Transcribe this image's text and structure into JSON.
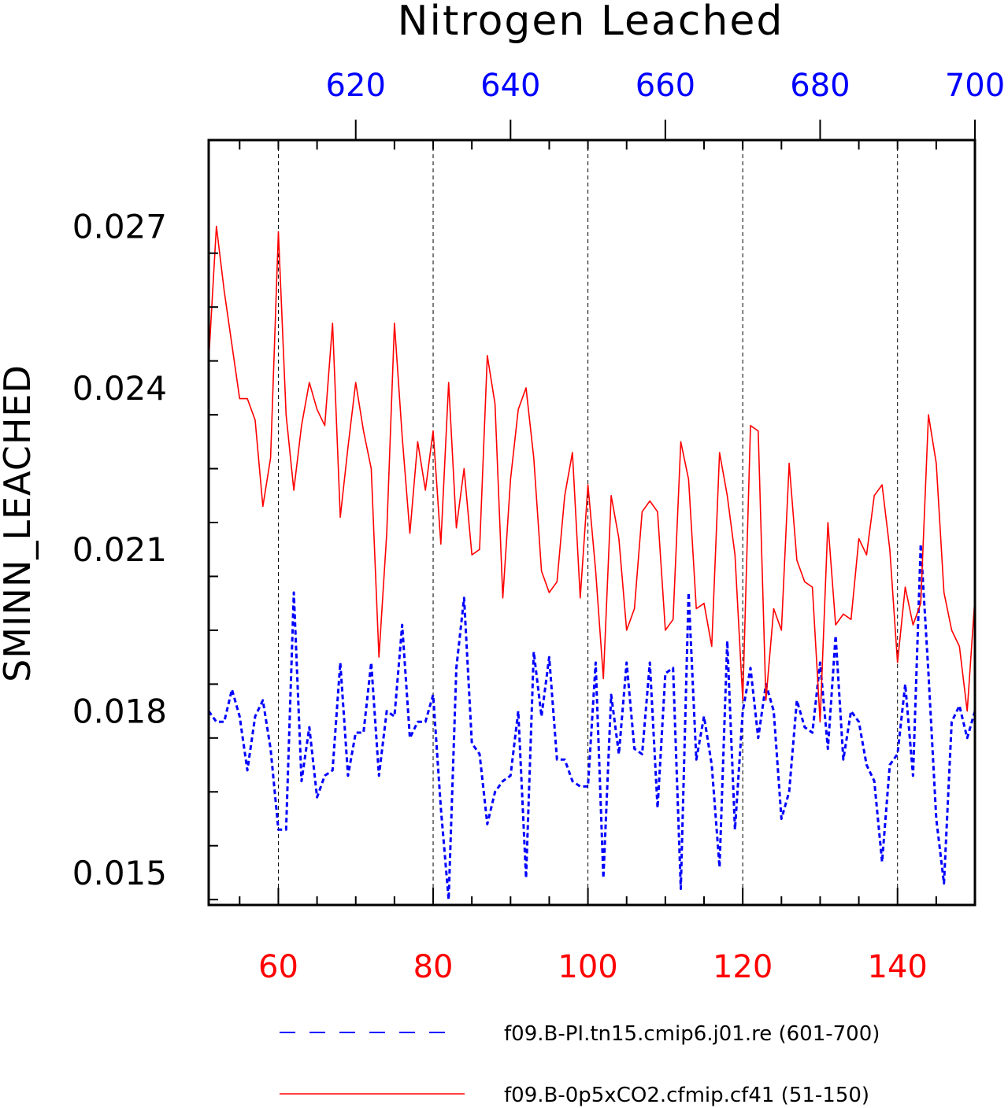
{
  "chart_data": {
    "type": "line",
    "title": "Nitrogen Leached",
    "ylabel": "SMINN_LEACHED",
    "ylim": [
      0.0144,
      0.0286
    ],
    "y_ticks": [
      "0.015",
      "0.018",
      "0.021",
      "0.024",
      "0.027"
    ],
    "grid": "vertical dashed",
    "legend_position": "bottom",
    "x_axis_bottom": {
      "color": "#ff0000",
      "range": [
        51,
        150
      ],
      "ticks": [
        "60",
        "80",
        "100",
        "120",
        "140"
      ]
    },
    "x_axis_top": {
      "color": "#0000ff",
      "range": [
        601,
        700
      ],
      "ticks": [
        "620",
        "640",
        "660",
        "680",
        "700"
      ]
    },
    "series": [
      {
        "name": "f09.B-PI.tn15.cmip6.j01.re (601-700)",
        "axis": "top",
        "color": "#0000ff",
        "style": "dashed",
        "x_start": 601,
        "values": [
          0.018,
          0.0178,
          0.0178,
          0.0184,
          0.0179,
          0.0169,
          0.0179,
          0.0182,
          0.0173,
          0.0158,
          0.0158,
          0.0202,
          0.0167,
          0.0177,
          0.0164,
          0.0168,
          0.0169,
          0.0189,
          0.0168,
          0.0176,
          0.0176,
          0.0189,
          0.0168,
          0.018,
          0.0179,
          0.0196,
          0.0175,
          0.0178,
          0.0178,
          0.0183,
          0.0162,
          0.0145,
          0.0188,
          0.0201,
          0.0174,
          0.0172,
          0.0159,
          0.0165,
          0.0167,
          0.0168,
          0.018,
          0.0149,
          0.0191,
          0.0179,
          0.019,
          0.0171,
          0.0171,
          0.0167,
          0.0166,
          0.0166,
          0.0189,
          0.0149,
          0.0183,
          0.0172,
          0.0189,
          0.0173,
          0.0172,
          0.0189,
          0.0162,
          0.0187,
          0.0188,
          0.0147,
          0.0202,
          0.0171,
          0.0179,
          0.017,
          0.0151,
          0.0193,
          0.0158,
          0.018,
          0.0188,
          0.0175,
          0.0185,
          0.018,
          0.016,
          0.0165,
          0.0182,
          0.0177,
          0.0176,
          0.0189,
          0.0173,
          0.0194,
          0.0171,
          0.018,
          0.0178,
          0.017,
          0.0167,
          0.0152,
          0.017,
          0.0172,
          0.0185,
          0.0168,
          0.0211,
          0.0187,
          0.016,
          0.0148,
          0.0178,
          0.0181,
          0.0175,
          0.018
        ]
      },
      {
        "name": "f09.B-0p5xCO2.cfmip.cf41 (51-150)",
        "axis": "bottom",
        "color": "#ff0000",
        "style": "solid",
        "x_start": 51,
        "values": [
          0.0245,
          0.027,
          0.0258,
          0.0248,
          0.0238,
          0.0238,
          0.0234,
          0.0218,
          0.0227,
          0.0269,
          0.0235,
          0.0221,
          0.0233,
          0.0241,
          0.0236,
          0.0233,
          0.0252,
          0.0216,
          0.0229,
          0.0241,
          0.0232,
          0.0225,
          0.019,
          0.0213,
          0.0252,
          0.0231,
          0.0213,
          0.023,
          0.0221,
          0.0232,
          0.0211,
          0.0241,
          0.0214,
          0.0225,
          0.0209,
          0.021,
          0.0246,
          0.0237,
          0.0201,
          0.0223,
          0.0236,
          0.024,
          0.0227,
          0.0206,
          0.0202,
          0.0204,
          0.022,
          0.0228,
          0.0201,
          0.0222,
          0.0206,
          0.0186,
          0.022,
          0.0212,
          0.0195,
          0.0199,
          0.0217,
          0.0219,
          0.0217,
          0.0195,
          0.0197,
          0.023,
          0.0223,
          0.0199,
          0.02,
          0.0192,
          0.0228,
          0.022,
          0.0209,
          0.0182,
          0.0233,
          0.0232,
          0.0182,
          0.0199,
          0.0195,
          0.0226,
          0.0208,
          0.0204,
          0.0203,
          0.0178,
          0.0215,
          0.0196,
          0.0198,
          0.0197,
          0.0212,
          0.0209,
          0.022,
          0.0222,
          0.021,
          0.0189,
          0.0203,
          0.0196,
          0.02,
          0.0235,
          0.0226,
          0.0202,
          0.0195,
          0.0192,
          0.018,
          0.0201
        ]
      }
    ]
  }
}
